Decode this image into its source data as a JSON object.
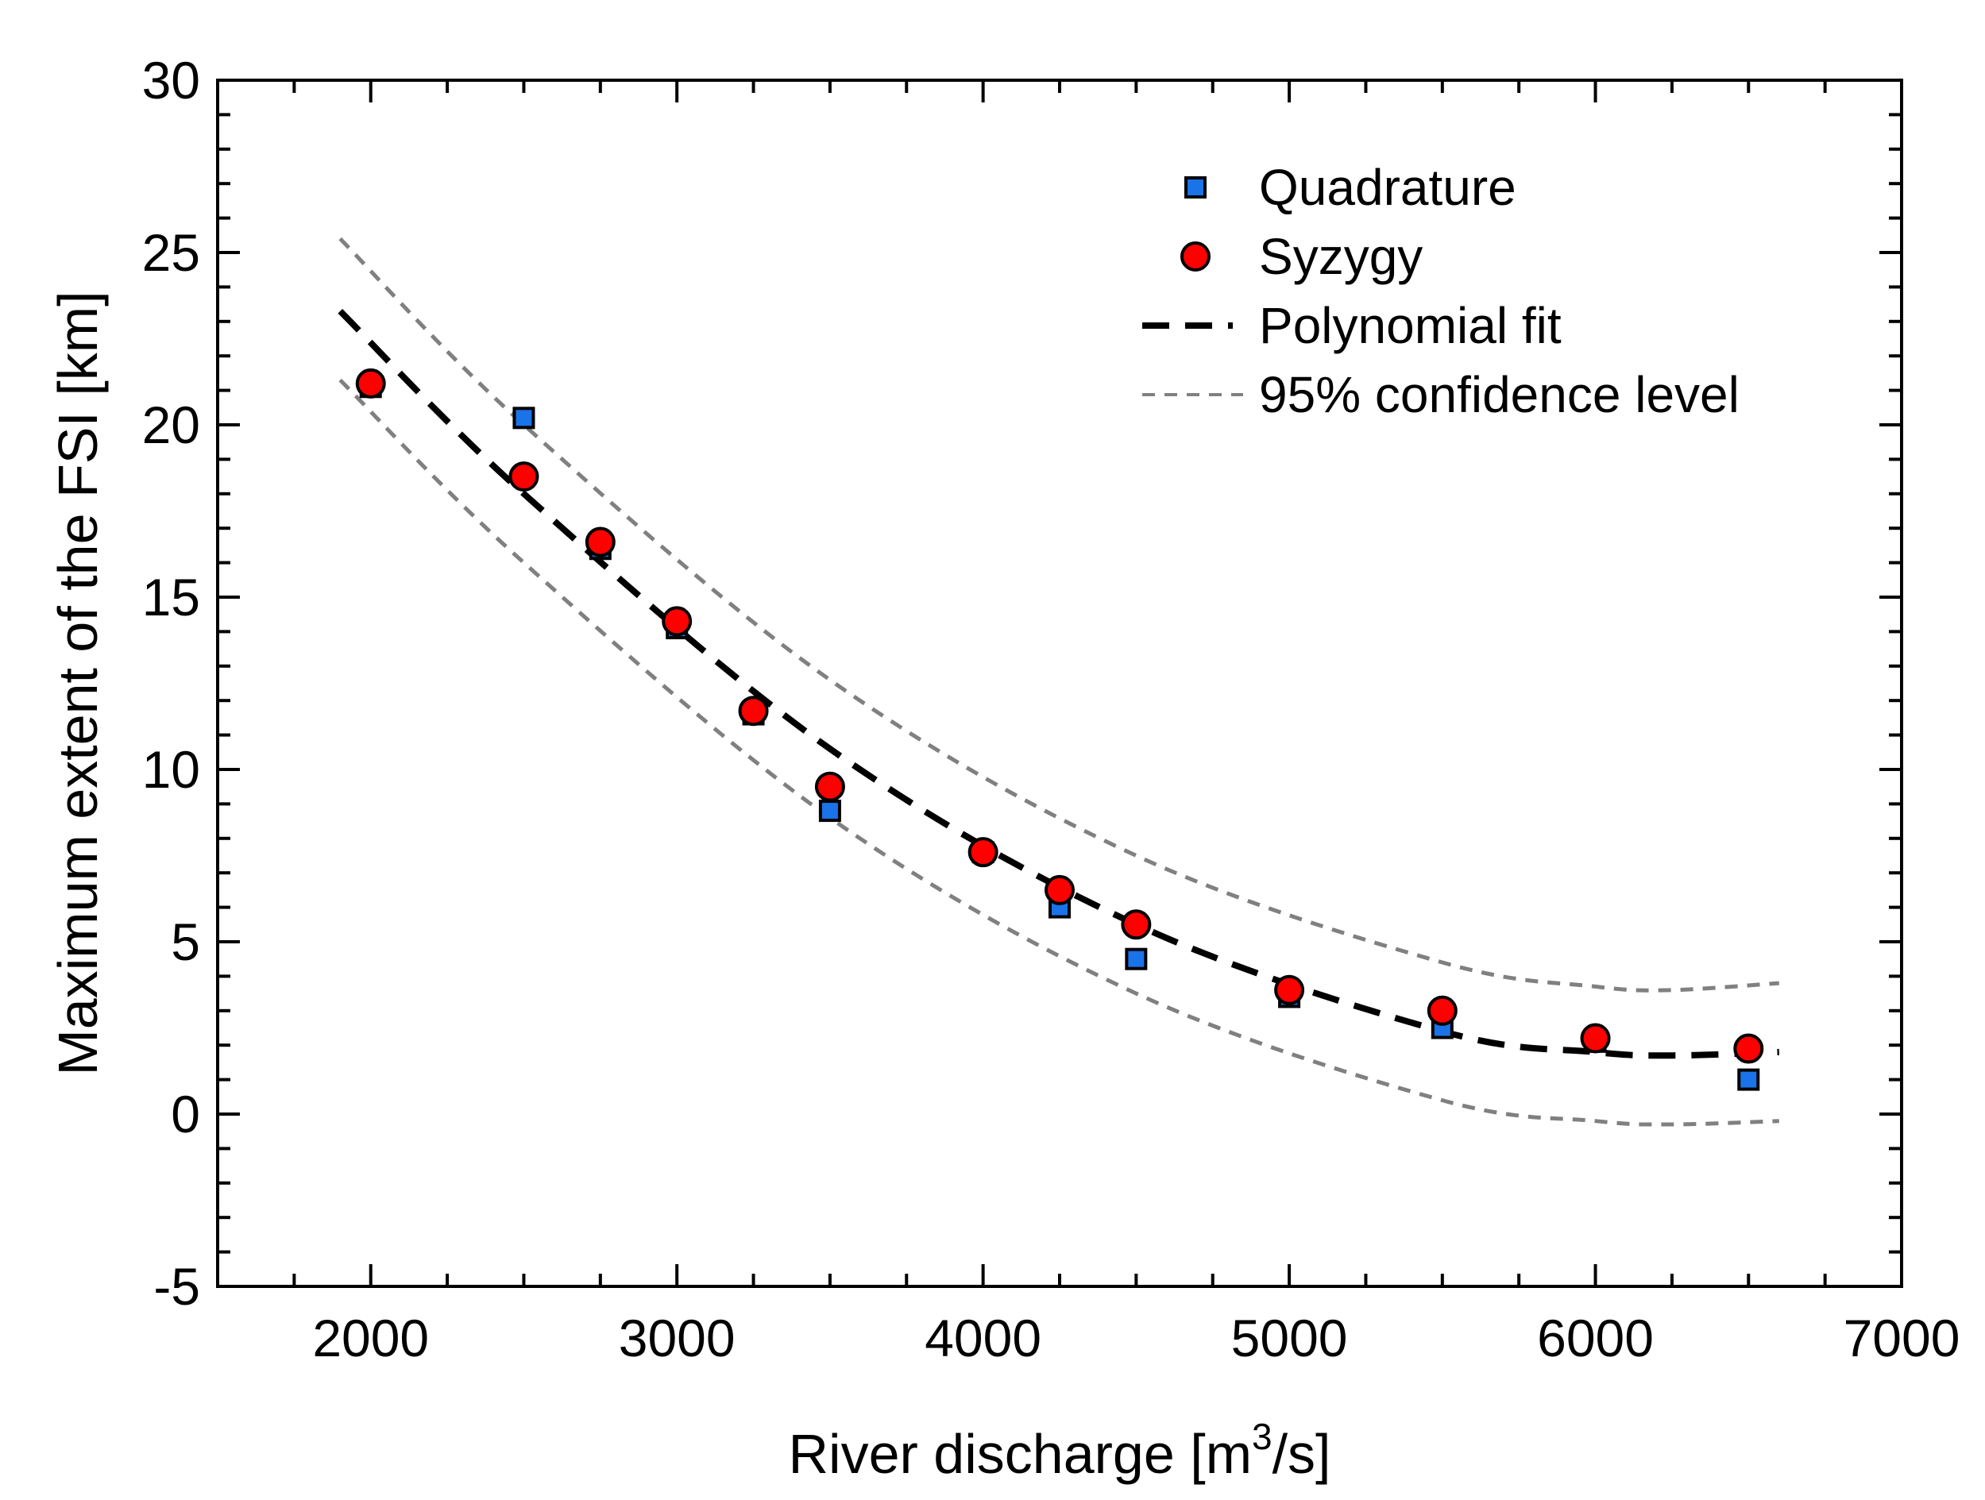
{
  "chart_data": {
    "type": "scatter",
    "title": "",
    "xlabel": "River discharge [m",
    "xlabel_sup": "3",
    "xlabel_suffix": "/s]",
    "ylabel": "Maximum extent of the FSI [km]",
    "xlim": [
      1500,
      7000
    ],
    "ylim": [
      -5,
      30
    ],
    "x_ticks": [
      2000,
      3000,
      4000,
      5000,
      6000,
      7000
    ],
    "y_ticks": [
      -5,
      0,
      5,
      10,
      15,
      20,
      25,
      30
    ],
    "x_minor_step": 250,
    "y_minor_step": 1,
    "grid": false,
    "legend_position": "top-right",
    "series": [
      {
        "name": "Quadrature",
        "marker": "square",
        "color": "#1a73e8",
        "x": [
          2000,
          2500,
          2750,
          3000,
          3250,
          3500,
          4000,
          4250,
          4500,
          5000,
          5500,
          6000,
          6500
        ],
        "y": [
          21.1,
          20.2,
          16.4,
          14.1,
          11.6,
          8.8,
          7.6,
          6.0,
          4.5,
          3.4,
          2.5,
          2.1,
          1.0
        ]
      },
      {
        "name": "Syzygy",
        "marker": "circle",
        "color": "#ff0000",
        "x": [
          2000,
          2500,
          2750,
          3000,
          3250,
          3500,
          4000,
          4250,
          4500,
          5000,
          5500,
          6000,
          6500
        ],
        "y": [
          21.2,
          18.5,
          16.6,
          14.3,
          11.7,
          9.5,
          7.6,
          6.5,
          5.5,
          3.6,
          3.0,
          2.2,
          1.9
        ]
      },
      {
        "name": "Polynomial fit",
        "line_style": "dashed",
        "color": "#000000",
        "x": [
          1900,
          2500,
          3500,
          4500,
          5500,
          6000,
          6250,
          6600
        ],
        "y": [
          23.3,
          18.0,
          10.6,
          5.5,
          2.4,
          1.8,
          1.7,
          1.8
        ]
      },
      {
        "name": "95% confidence level",
        "line_style": "dashed",
        "color": "#808080",
        "upper": {
          "x": [
            1900,
            2500,
            3500,
            4500,
            5500,
            6000,
            6250,
            6600
          ],
          "y": [
            25.4,
            20.0,
            12.6,
            7.5,
            4.4,
            3.7,
            3.6,
            3.8
          ]
        },
        "lower": {
          "x": [
            1900,
            2500,
            3500,
            4500,
            5500,
            6000,
            6250,
            6600
          ],
          "y": [
            21.3,
            16.0,
            8.6,
            3.5,
            0.4,
            -0.2,
            -0.3,
            -0.2
          ]
        }
      }
    ]
  }
}
